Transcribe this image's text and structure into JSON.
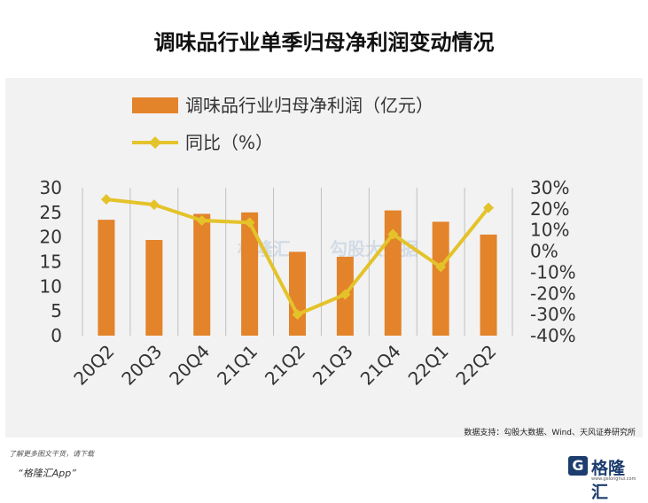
{
  "title": "调味品行业单季归母净利润变动情况",
  "chart_data": {
    "type": "bar+line",
    "categories": [
      "20Q2",
      "20Q3",
      "20Q4",
      "21Q1",
      "21Q2",
      "21Q3",
      "21Q4",
      "22Q1",
      "22Q2"
    ],
    "series": [
      {
        "name": "调味品行业归母净利润（亿元）",
        "type": "bar",
        "axis": "left",
        "values": [
          23.5,
          19.4,
          24.7,
          25.0,
          17.0,
          16.0,
          25.4,
          23.1,
          20.5
        ]
      },
      {
        "name": "同比（%）",
        "type": "line",
        "axis": "right",
        "values": [
          24.5,
          22,
          14.5,
          13.5,
          -30,
          -20.5,
          8,
          -7.5,
          20.5
        ]
      }
    ],
    "y_left": {
      "min": 0,
      "max": 30,
      "ticks": [
        0,
        5,
        10,
        15,
        20,
        25,
        30
      ]
    },
    "y_right": {
      "min": -40,
      "max": 30,
      "ticks": [
        "-40%",
        "-30%",
        "-20%",
        "-10%",
        "0%",
        "10%",
        "20%",
        "30%"
      ]
    },
    "legend": [
      "调味品行业归母净利润（亿元）",
      "同比（%）"
    ]
  },
  "colors": {
    "bar": "#e3832a",
    "line": "#e4c32a",
    "grid": "#bfbfbf",
    "panel": "#f2f2f2"
  },
  "watermark": {
    "brand": "格隆汇",
    "site": "勾股大数据"
  },
  "source": "数据支持：勾股大数据、Wind、天风证券研究所",
  "footer": {
    "note": "了解更多图文干货，请下载",
    "app": "“格隆汇App”"
  },
  "logo": {
    "text": "格隆汇",
    "url": "www.gelonghui.com"
  }
}
